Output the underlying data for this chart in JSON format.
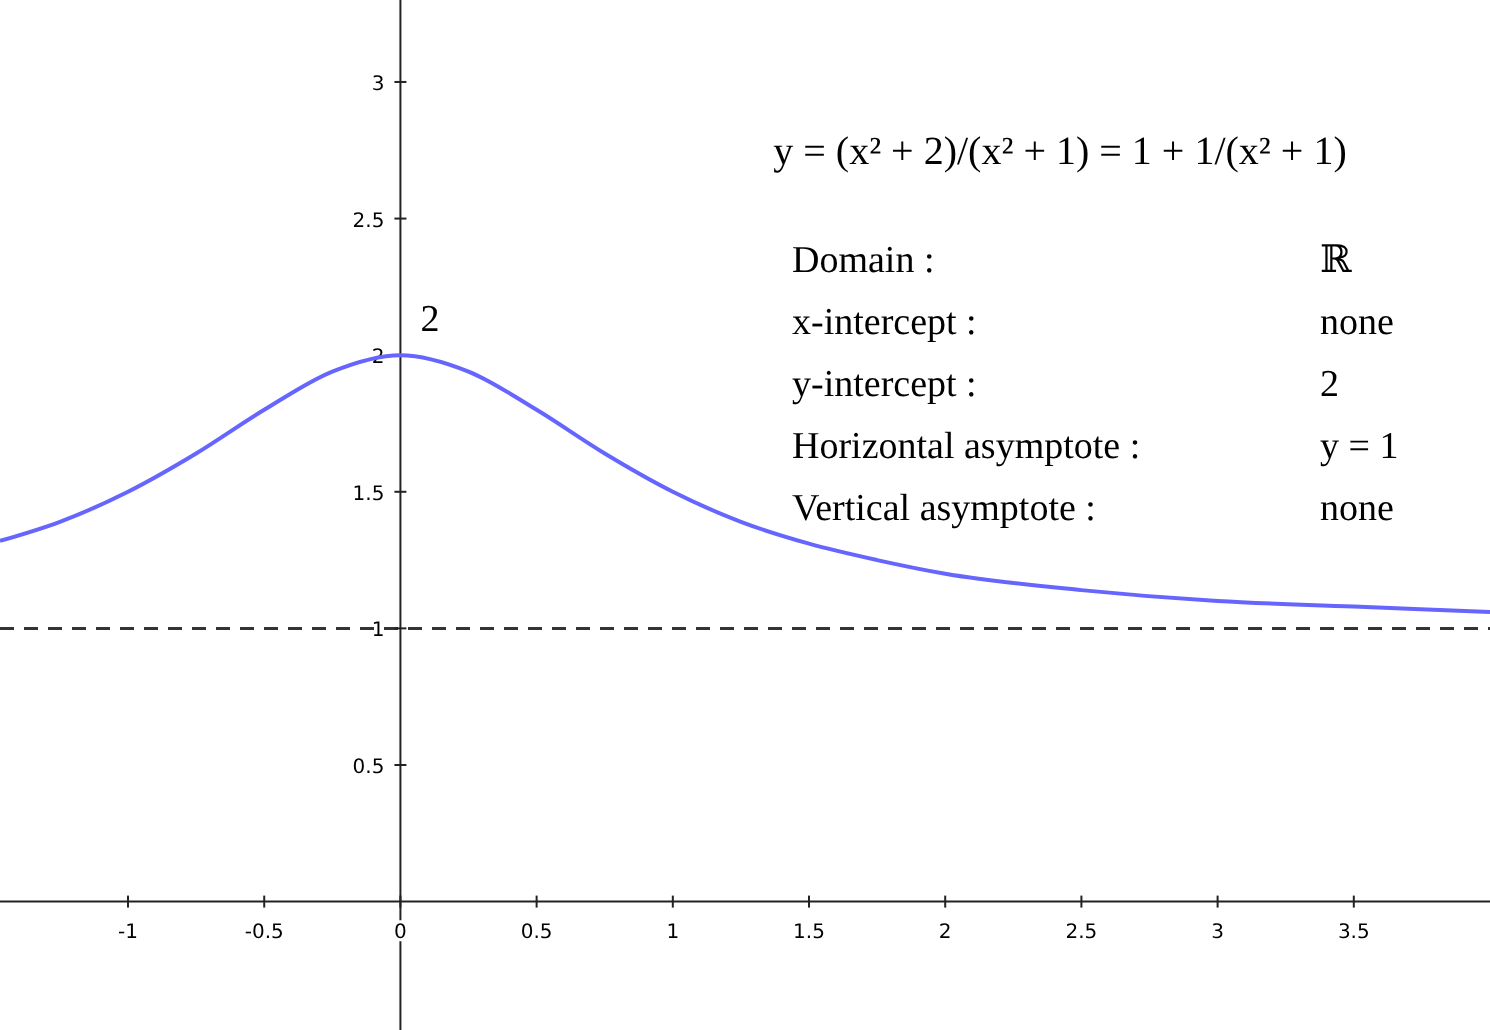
{
  "chart_data": {
    "type": "line",
    "x": [
      -1.47,
      -1.25,
      -1,
      -0.75,
      -0.5,
      -0.25,
      0,
      0.25,
      0.5,
      0.75,
      1,
      1.25,
      1.5,
      1.75,
      2,
      2.5,
      3,
      3.5,
      4
    ],
    "series": [
      {
        "color": "#6666ff",
        "values": [
          1.32,
          1.39,
          1.5,
          1.64,
          1.8,
          1.94,
          2,
          1.94,
          1.8,
          1.64,
          1.5,
          1.39,
          1.31,
          1.25,
          1.2,
          1.14,
          1.1,
          1.08,
          1.06
        ]
      }
    ],
    "xlim": [
      -1.47,
      4
    ],
    "ylim": [
      -0.47,
      3.3
    ],
    "xticks": [
      -1,
      -0.5,
      0,
      0.5,
      1,
      1.5,
      2,
      2.5,
      3,
      3.5
    ],
    "yticks": [
      0.5,
      1,
      1.5,
      2,
      2.5,
      3
    ],
    "grid": false,
    "marker": "none",
    "line_style": "solid",
    "ref_lines": [
      {
        "axis": "y",
        "value": 1,
        "color": "#333333",
        "line_style": "dashed"
      }
    ],
    "annotations": [
      "y = (x² + 2)/(x² + 1) = 1 + 1/(x² + 1)",
      "Domain :",
      "ℝ",
      "x-intercept :",
      "none",
      "y-intercept :",
      "2",
      "Horizontal asymptote :",
      "y = 1",
      "Vertical asymptote :",
      "none",
      {
        "text": "2",
        "x": 0,
        "y": 2
      }
    ]
  }
}
